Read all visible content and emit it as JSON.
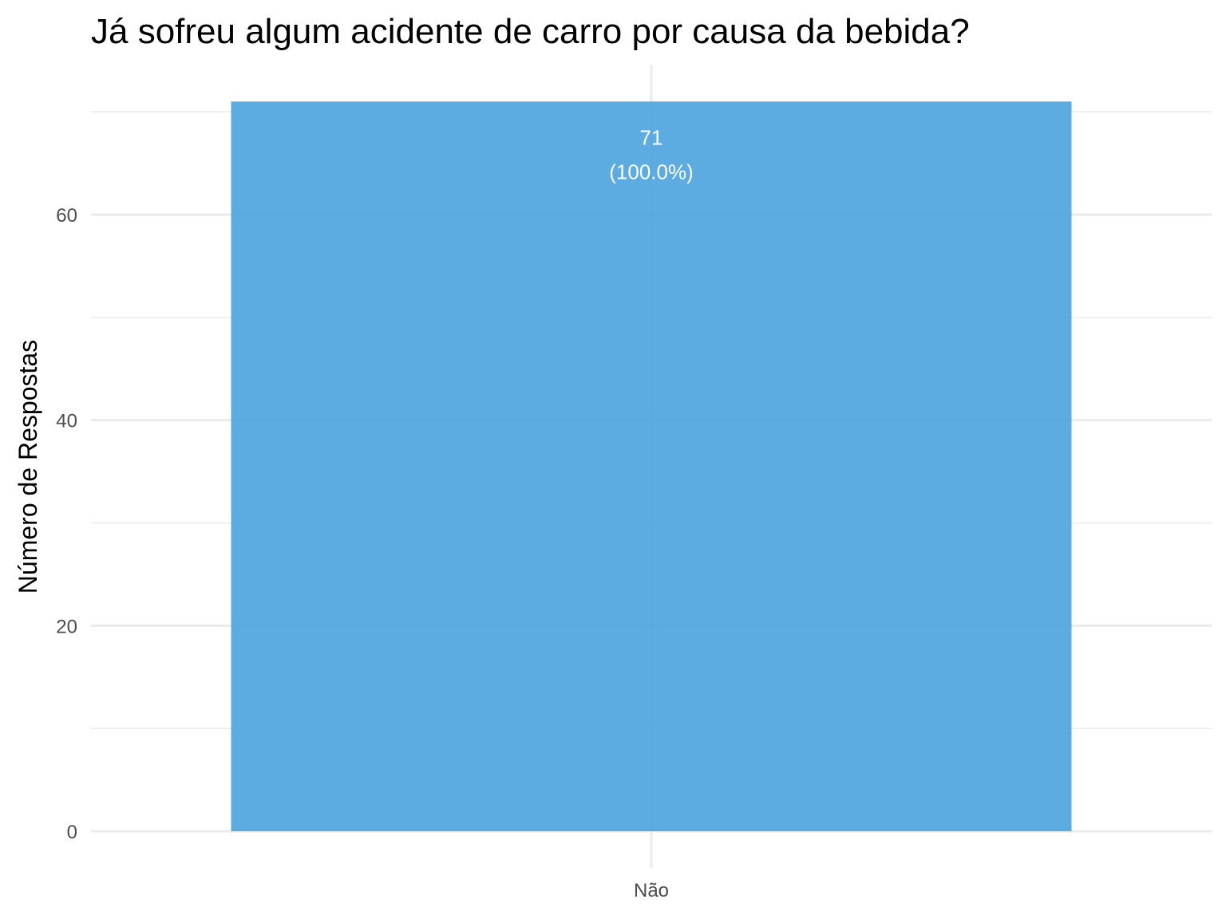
{
  "chart_data": {
    "type": "bar",
    "title": "Já sofreu algum acidente de carro por causa da bebida?",
    "xlabel": "",
    "ylabel": "Número de Respostas",
    "categories": [
      "Não"
    ],
    "values": [
      71
    ],
    "data_labels": [
      [
        "71",
        "(100.0%)"
      ]
    ],
    "ylim": [
      0,
      71
    ],
    "yticks": [
      0,
      20,
      40,
      60
    ],
    "grid": true,
    "legend": "none",
    "bar_color": "#4aa3df"
  }
}
